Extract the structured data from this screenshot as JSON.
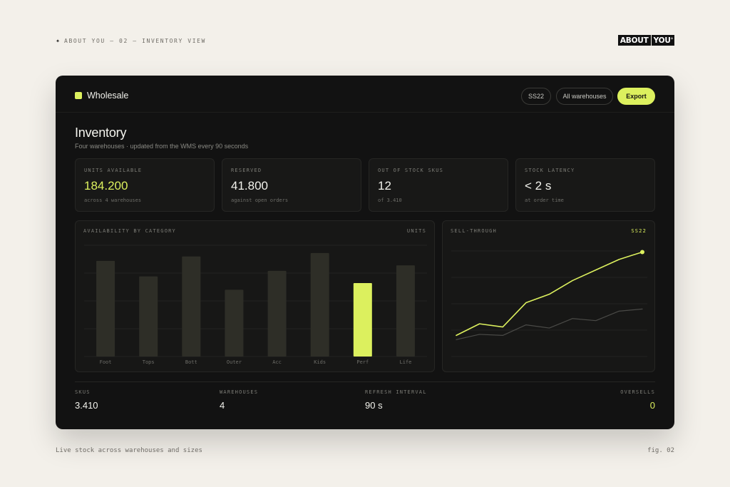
{
  "page": {
    "caption_top": "ABOUT YOU — 02 — INVENTORY VIEW",
    "caption_bottom": "Live stock across warehouses and sizes",
    "fig_label": "fig. 02",
    "logo_part1": "ABOUT",
    "logo_part2": "YOU",
    "logo_mark": "°"
  },
  "topbar": {
    "workspace_label": "Wholesale",
    "season_pill": "SS22",
    "warehouse_pill": "All warehouses",
    "export_button": "Export"
  },
  "header": {
    "title": "Inventory",
    "subtitle": "Four warehouses · updated from the WMS every 90 seconds"
  },
  "kpis": [
    {
      "label": "UNITS AVAILABLE",
      "value": "184.200",
      "sub": "across 4 warehouses"
    },
    {
      "label": "RESERVED",
      "value": "41.800",
      "sub": "against open orders"
    },
    {
      "label": "OUT OF STOCK SKUS",
      "value": "12",
      "sub": "of 3.410"
    },
    {
      "label": "STOCK LATENCY",
      "value": "< 2 s",
      "sub": "at order time"
    }
  ],
  "availability_panel": {
    "title": "AVAILABILITY BY CATEGORY",
    "tag": "UNITS"
  },
  "sellthrough_panel": {
    "title": "SELL-THROUGH",
    "tag": "SS22"
  },
  "footer_stats": [
    {
      "label": "SKUS",
      "value": "3.410"
    },
    {
      "label": "WAREHOUSES",
      "value": "4"
    },
    {
      "label": "REFRESH INTERVAL",
      "value": "90 s"
    },
    {
      "label": "OVERSELLS",
      "value": "0"
    }
  ],
  "colors": {
    "accent": "#dcf05e",
    "bar": "#2e2e27",
    "muted_line": "#4a4a47"
  },
  "chart_data": [
    {
      "type": "bar",
      "categories": [
        "Foot",
        "Tops",
        "Bott",
        "Outer",
        "Acc",
        "Kids",
        "Perf",
        "Life"
      ],
      "values": [
        86,
        72,
        90,
        60,
        77,
        93,
        66,
        82
      ],
      "highlight": "Perf",
      "ylim": [
        0,
        100
      ],
      "grid": true
    },
    {
      "type": "line",
      "x": [
        1,
        2,
        3,
        4,
        5,
        6,
        7,
        8,
        9
      ],
      "series": [
        {
          "values": [
            20,
            31,
            28,
            51,
            59,
            72,
            82,
            92,
            99
          ]
        },
        {
          "values": [
            16,
            21,
            20,
            30,
            27,
            36,
            34,
            43,
            45
          ]
        }
      ],
      "ylim": [
        0,
        100
      ],
      "grid": true
    }
  ]
}
